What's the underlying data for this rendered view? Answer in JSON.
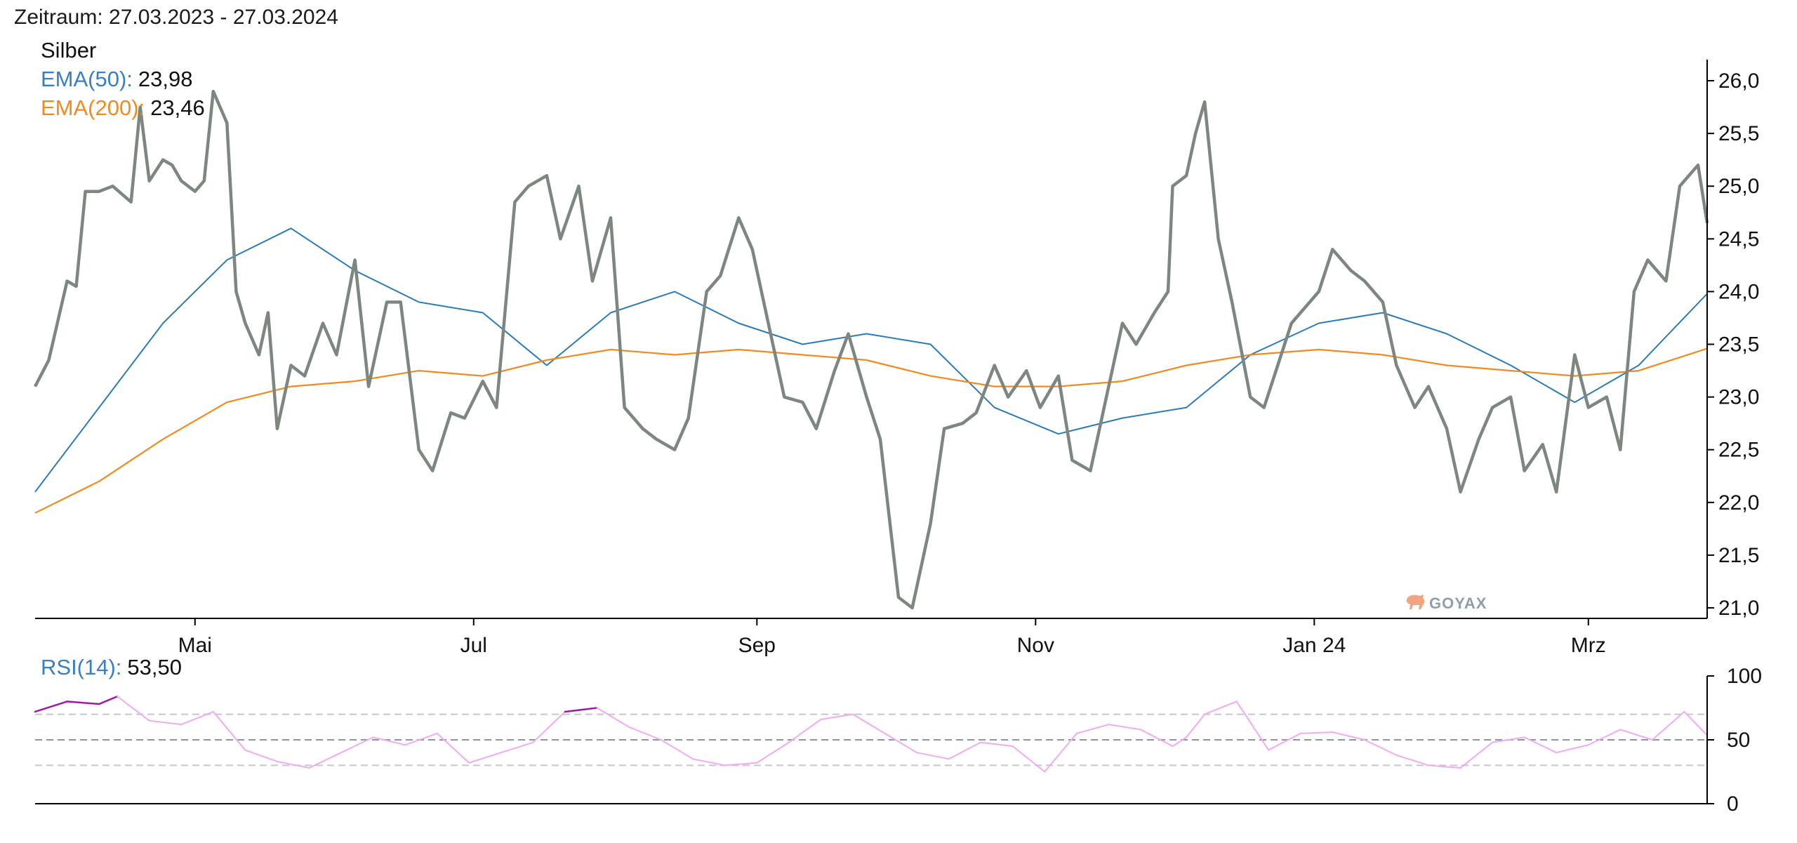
{
  "period_label": "Zeitraum: 27.03.2023 - 27.03.2024",
  "logo_text": "GOYAX",
  "legend": {
    "instrument": "Silber",
    "ema50_label": "EMA(50):",
    "ema50_value": "23,98",
    "ema200_label": "EMA(200):",
    "ema200_value": "23,46",
    "rsi_label": "RSI(14):",
    "rsi_value": "53,50"
  },
  "colors": {
    "price": "#7d8780",
    "ema50": "#2b7bb9",
    "ema200": "#f28a1e",
    "rsi_normal": "#f2aaf0",
    "rsi_extreme": "#a01aa8",
    "rsi_mid_line": "#8c96a6",
    "rsi_band_line": "#c4c8d2",
    "label_blue": "#3a7fc1",
    "label_orange": "#f28a1e",
    "logo": "#8fa0a8"
  },
  "chart_data": [
    {
      "type": "line",
      "name": "Silber",
      "x_range": [
        "2023-03-27",
        "2024-03-27"
      ],
      "x_tick_labels": [
        {
          "date": "2023-05-01",
          "label": "Mai"
        },
        {
          "date": "2023-07-01",
          "label": "Jul"
        },
        {
          "date": "2023-09-01",
          "label": "Sep"
        },
        {
          "date": "2023-11-01",
          "label": "Nov"
        },
        {
          "date": "2024-01-01",
          "label": "Jan 24"
        },
        {
          "date": "2024-03-01",
          "label": "Mrz"
        }
      ],
      "ylim": [
        20.9,
        26.2
      ],
      "y_ticks": [
        21.0,
        21.5,
        22.0,
        22.5,
        23.0,
        23.5,
        24.0,
        24.5,
        25.0,
        25.5,
        26.0
      ],
      "y_tick_labels": [
        "21,0",
        "21,5",
        "22,0",
        "22,5",
        "23,0",
        "23,5",
        "24,0",
        "24,5",
        "25,0",
        "25,5",
        "26,0"
      ],
      "y_axis_side": "right",
      "series": [
        {
          "name": "Silber",
          "x": [
            "2023-03-27",
            "2023-03-30",
            "2023-04-03",
            "2023-04-05",
            "2023-04-07",
            "2023-04-10",
            "2023-04-13",
            "2023-04-17",
            "2023-04-19",
            "2023-04-21",
            "2023-04-24",
            "2023-04-26",
            "2023-04-28",
            "2023-05-01",
            "2023-05-03",
            "2023-05-05",
            "2023-05-08",
            "2023-05-10",
            "2023-05-12",
            "2023-05-15",
            "2023-05-17",
            "2023-05-19",
            "2023-05-22",
            "2023-05-25",
            "2023-05-29",
            "2023-06-01",
            "2023-06-05",
            "2023-06-08",
            "2023-06-12",
            "2023-06-15",
            "2023-06-19",
            "2023-06-22",
            "2023-06-26",
            "2023-06-29",
            "2023-07-03",
            "2023-07-06",
            "2023-07-10",
            "2023-07-13",
            "2023-07-17",
            "2023-07-20",
            "2023-07-24",
            "2023-07-27",
            "2023-07-31",
            "2023-08-03",
            "2023-08-07",
            "2023-08-10",
            "2023-08-14",
            "2023-08-17",
            "2023-08-21",
            "2023-08-24",
            "2023-08-28",
            "2023-08-31",
            "2023-09-04",
            "2023-09-07",
            "2023-09-11",
            "2023-09-14",
            "2023-09-18",
            "2023-09-21",
            "2023-09-25",
            "2023-09-28",
            "2023-10-02",
            "2023-10-05",
            "2023-10-09",
            "2023-10-12",
            "2023-10-16",
            "2023-10-19",
            "2023-10-23",
            "2023-10-26",
            "2023-10-30",
            "2023-11-02",
            "2023-11-06",
            "2023-11-09",
            "2023-11-13",
            "2023-11-16",
            "2023-11-20",
            "2023-11-23",
            "2023-11-27",
            "2023-11-30",
            "2023-12-01",
            "2023-12-04",
            "2023-12-06",
            "2023-12-08",
            "2023-12-11",
            "2023-12-14",
            "2023-12-18",
            "2023-12-21",
            "2023-12-27",
            "2024-01-02",
            "2024-01-05",
            "2024-01-09",
            "2024-01-12",
            "2024-01-16",
            "2024-01-19",
            "2024-01-23",
            "2024-01-26",
            "2024-01-30",
            "2024-02-02",
            "2024-02-06",
            "2024-02-09",
            "2024-02-13",
            "2024-02-16",
            "2024-02-20",
            "2024-02-23",
            "2024-02-27",
            "2024-03-01",
            "2024-03-05",
            "2024-03-08",
            "2024-03-11",
            "2024-03-14",
            "2024-03-18",
            "2024-03-21",
            "2024-03-25",
            "2024-03-27"
          ],
          "y": [
            23.1,
            23.35,
            24.1,
            24.05,
            24.95,
            24.95,
            25.0,
            24.85,
            25.75,
            25.05,
            25.25,
            25.2,
            25.05,
            24.95,
            25.05,
            25.9,
            25.6,
            24.0,
            23.7,
            23.4,
            23.8,
            22.7,
            23.3,
            23.2,
            23.7,
            23.4,
            24.3,
            23.1,
            23.9,
            23.9,
            22.5,
            22.3,
            22.85,
            22.8,
            23.15,
            22.9,
            24.85,
            25.0,
            25.1,
            24.5,
            25.0,
            24.1,
            24.7,
            22.9,
            22.7,
            22.6,
            22.5,
            22.8,
            24.0,
            24.15,
            24.7,
            24.4,
            23.6,
            23.0,
            22.95,
            22.7,
            23.25,
            23.6,
            23.0,
            22.6,
            21.1,
            21.0,
            21.8,
            22.7,
            22.75,
            22.85,
            23.3,
            23.0,
            23.25,
            22.9,
            23.2,
            22.4,
            22.3,
            22.9,
            23.7,
            23.5,
            23.8,
            24.0,
            25.0,
            25.1,
            25.5,
            25.8,
            24.5,
            23.9,
            23.0,
            22.9,
            23.7,
            24.0,
            24.4,
            24.2,
            24.1,
            23.9,
            23.3,
            22.9,
            23.1,
            22.7,
            22.1,
            22.6,
            22.9,
            23.0,
            22.3,
            22.55,
            22.1,
            23.4,
            22.9,
            23.0,
            22.5,
            24.0,
            24.3,
            24.1,
            25.0,
            25.2,
            24.65
          ]
        },
        {
          "name": "EMA(50)",
          "x": [
            "2023-03-27",
            "2023-04-10",
            "2023-04-24",
            "2023-05-08",
            "2023-05-22",
            "2023-06-05",
            "2023-06-19",
            "2023-07-03",
            "2023-07-17",
            "2023-07-31",
            "2023-08-14",
            "2023-08-28",
            "2023-09-11",
            "2023-09-25",
            "2023-10-09",
            "2023-10-23",
            "2023-11-06",
            "2023-11-20",
            "2023-12-04",
            "2023-12-18",
            "2024-01-02",
            "2024-01-16",
            "2024-01-30",
            "2024-02-13",
            "2024-02-27",
            "2024-03-12",
            "2024-03-27"
          ],
          "y": [
            22.1,
            22.9,
            23.7,
            24.3,
            24.6,
            24.2,
            23.9,
            23.8,
            23.3,
            23.8,
            24.0,
            23.7,
            23.5,
            23.6,
            23.5,
            22.9,
            22.65,
            22.8,
            22.9,
            23.4,
            23.7,
            23.8,
            23.6,
            23.3,
            22.95,
            23.3,
            23.98
          ]
        },
        {
          "name": "EMA(200)",
          "x": [
            "2023-03-27",
            "2023-04-10",
            "2023-04-24",
            "2023-05-08",
            "2023-05-22",
            "2023-06-05",
            "2023-06-19",
            "2023-07-03",
            "2023-07-17",
            "2023-07-31",
            "2023-08-14",
            "2023-08-28",
            "2023-09-11",
            "2023-09-25",
            "2023-10-09",
            "2023-10-23",
            "2023-11-06",
            "2023-11-20",
            "2023-12-04",
            "2023-12-18",
            "2024-01-02",
            "2024-01-16",
            "2024-01-30",
            "2024-02-13",
            "2024-02-27",
            "2024-03-12",
            "2024-03-27"
          ],
          "y": [
            21.9,
            22.2,
            22.6,
            22.95,
            23.1,
            23.15,
            23.25,
            23.2,
            23.35,
            23.45,
            23.4,
            23.45,
            23.4,
            23.35,
            23.2,
            23.1,
            23.1,
            23.15,
            23.3,
            23.4,
            23.45,
            23.4,
            23.3,
            23.25,
            23.2,
            23.25,
            23.46
          ]
        }
      ]
    },
    {
      "type": "line",
      "name": "RSI(14)",
      "x_range": [
        "2023-03-27",
        "2024-03-27"
      ],
      "ylim": [
        0,
        100
      ],
      "y_ticks": [
        0,
        50,
        100
      ],
      "y_tick_labels": [
        "0",
        "50",
        "100"
      ],
      "reference_lines": [
        30,
        50,
        70
      ],
      "series": [
        {
          "name": "RSI(14)",
          "x": [
            "2023-03-27",
            "2023-04-03",
            "2023-04-10",
            "2023-04-14",
            "2023-04-21",
            "2023-04-28",
            "2023-05-05",
            "2023-05-12",
            "2023-05-19",
            "2023-05-26",
            "2023-06-02",
            "2023-06-09",
            "2023-06-16",
            "2023-06-23",
            "2023-06-30",
            "2023-07-07",
            "2023-07-14",
            "2023-07-21",
            "2023-07-28",
            "2023-08-04",
            "2023-08-11",
            "2023-08-18",
            "2023-08-25",
            "2023-09-01",
            "2023-09-08",
            "2023-09-15",
            "2023-09-22",
            "2023-09-29",
            "2023-10-06",
            "2023-10-13",
            "2023-10-20",
            "2023-10-27",
            "2023-11-03",
            "2023-11-10",
            "2023-11-17",
            "2023-11-24",
            "2023-12-01",
            "2023-12-04",
            "2023-12-08",
            "2023-12-15",
            "2023-12-22",
            "2023-12-29",
            "2024-01-05",
            "2024-01-12",
            "2024-01-19",
            "2024-01-26",
            "2024-02-02",
            "2024-02-09",
            "2024-02-16",
            "2024-02-23",
            "2024-03-01",
            "2024-03-08",
            "2024-03-15",
            "2024-03-22",
            "2024-03-27"
          ],
          "y": [
            72,
            80,
            78,
            84,
            65,
            62,
            72,
            42,
            33,
            28,
            40,
            52,
            46,
            55,
            32,
            40,
            48,
            72,
            75,
            60,
            50,
            35,
            30,
            32,
            48,
            66,
            70,
            55,
            40,
            35,
            48,
            45,
            25,
            55,
            62,
            58,
            45,
            52,
            70,
            80,
            42,
            55,
            56,
            50,
            38,
            30,
            28,
            48,
            52,
            40,
            46,
            58,
            50,
            72,
            53.5
          ]
        }
      ]
    }
  ]
}
